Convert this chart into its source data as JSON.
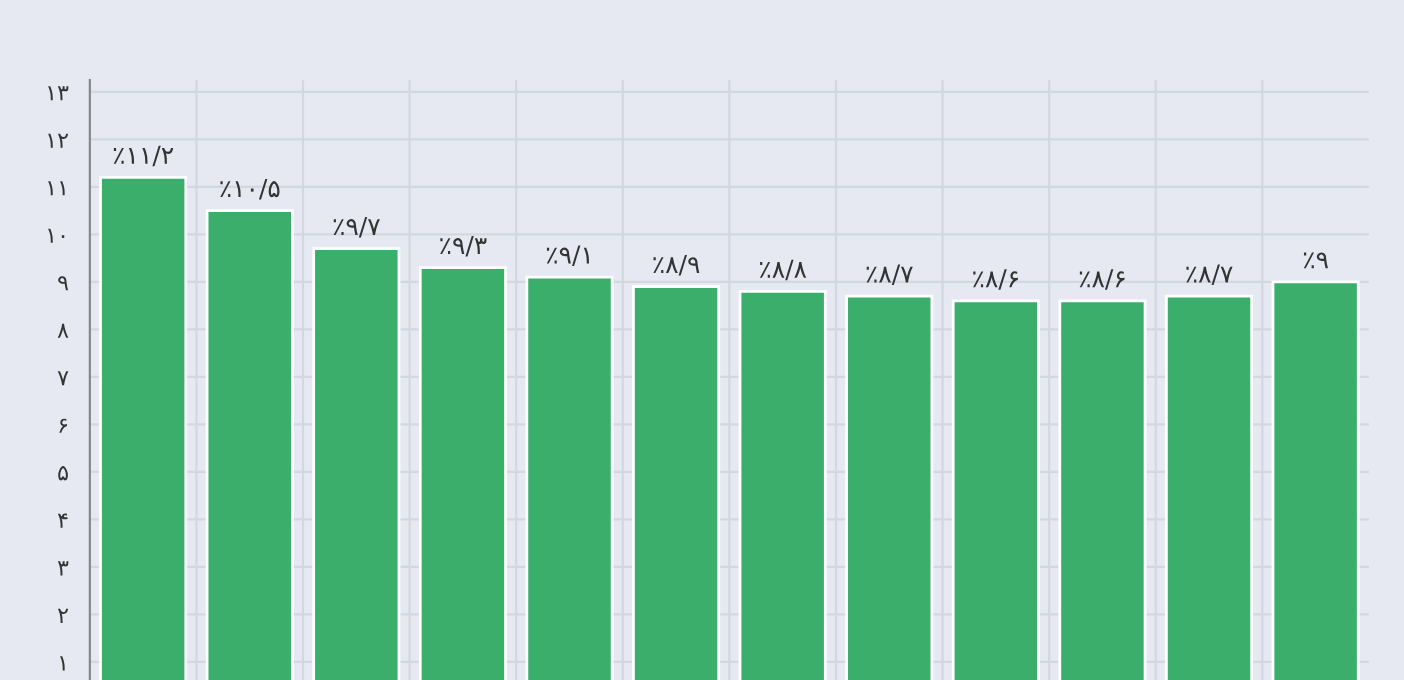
{
  "chart_data": {
    "type": "bar",
    "categories": [
      null,
      null,
      null,
      null,
      null,
      null,
      null,
      null,
      null,
      null,
      null,
      null
    ],
    "series": [
      {
        "color": "#3aae6a",
        "values": [
          11.2,
          10.5,
          9.7,
          9.3,
          9.1,
          8.9,
          8.8,
          8.7,
          8.6,
          8.6,
          8.7,
          9
        ],
        "value_labels": [
          "٪۱۱/۲",
          "٪۱۰/۵",
          "٪۹/۷",
          "٪۹/۳",
          "٪۹/۱",
          "٪۸/۹",
          "٪۸/۸",
          "٪۸/۷",
          "٪۸/۶",
          "٪۸/۶",
          "٪۸/۷",
          "٪۹"
        ]
      }
    ],
    "ylim": [
      0.62,
      13.25
    ],
    "yticks": [
      {
        "value": 1,
        "label": "۱"
      },
      {
        "value": 2,
        "label": "۲"
      },
      {
        "value": 3,
        "label": "۳"
      },
      {
        "value": 4,
        "label": "۴"
      },
      {
        "value": 5,
        "label": "۵"
      },
      {
        "value": 6,
        "label": "۶"
      },
      {
        "value": 7,
        "label": "۷"
      },
      {
        "value": 8,
        "label": "۸"
      },
      {
        "value": 9,
        "label": "۹"
      },
      {
        "value": 10,
        "label": "۱۰"
      },
      {
        "value": 11,
        "label": "۱۱"
      },
      {
        "value": 12,
        "label": "۱۲"
      },
      {
        "value": 13,
        "label": "۱۳"
      }
    ],
    "grid": true,
    "tick_labels": "y"
  }
}
